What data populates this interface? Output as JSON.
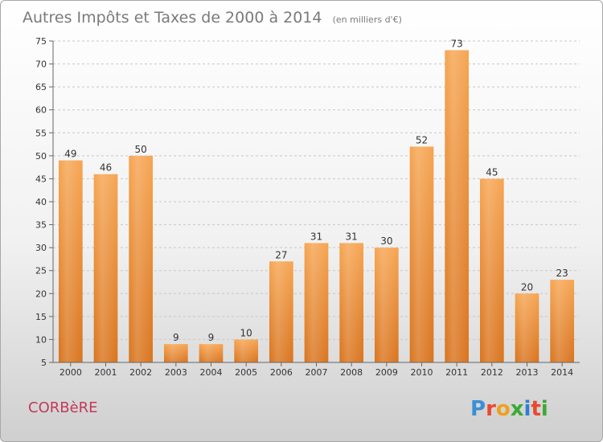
{
  "title": "Autres Impôts et Taxes de 2000 à 2014",
  "subtitle": "(en milliers d'€)",
  "town": "CORBèRE",
  "logo": {
    "letters": [
      "P",
      "r",
      "o",
      "x",
      "i",
      "t",
      "i"
    ],
    "colors": [
      "#3b8fd6",
      "#e8492f",
      "#f0a020",
      "#3aaa35",
      "#2f7fcf",
      "#e8492f",
      "#3aaa35"
    ]
  },
  "colors": {
    "bar_top": "#f6a552",
    "bar_bottom": "#d9741e",
    "grid": "#c8c8c8"
  },
  "chart_data": {
    "type": "bar",
    "title": "Autres Impôts et Taxes de 2000 à 2014",
    "subtitle": "(en milliers d'€)",
    "xlabel": "",
    "ylabel": "",
    "ylim": [
      5,
      75
    ],
    "yticks": [
      5,
      10,
      15,
      20,
      25,
      30,
      35,
      40,
      45,
      50,
      55,
      60,
      65,
      70,
      75
    ],
    "categories": [
      "2000",
      "2001",
      "2002",
      "2003",
      "2004",
      "2005",
      "2006",
      "2007",
      "2008",
      "2009",
      "2010",
      "2011",
      "2012",
      "2013",
      "2014"
    ],
    "values": [
      49,
      46,
      50,
      9,
      9,
      10,
      27,
      31,
      31,
      30,
      52,
      73,
      45,
      20,
      23
    ],
    "grid": true,
    "legend": "none"
  }
}
